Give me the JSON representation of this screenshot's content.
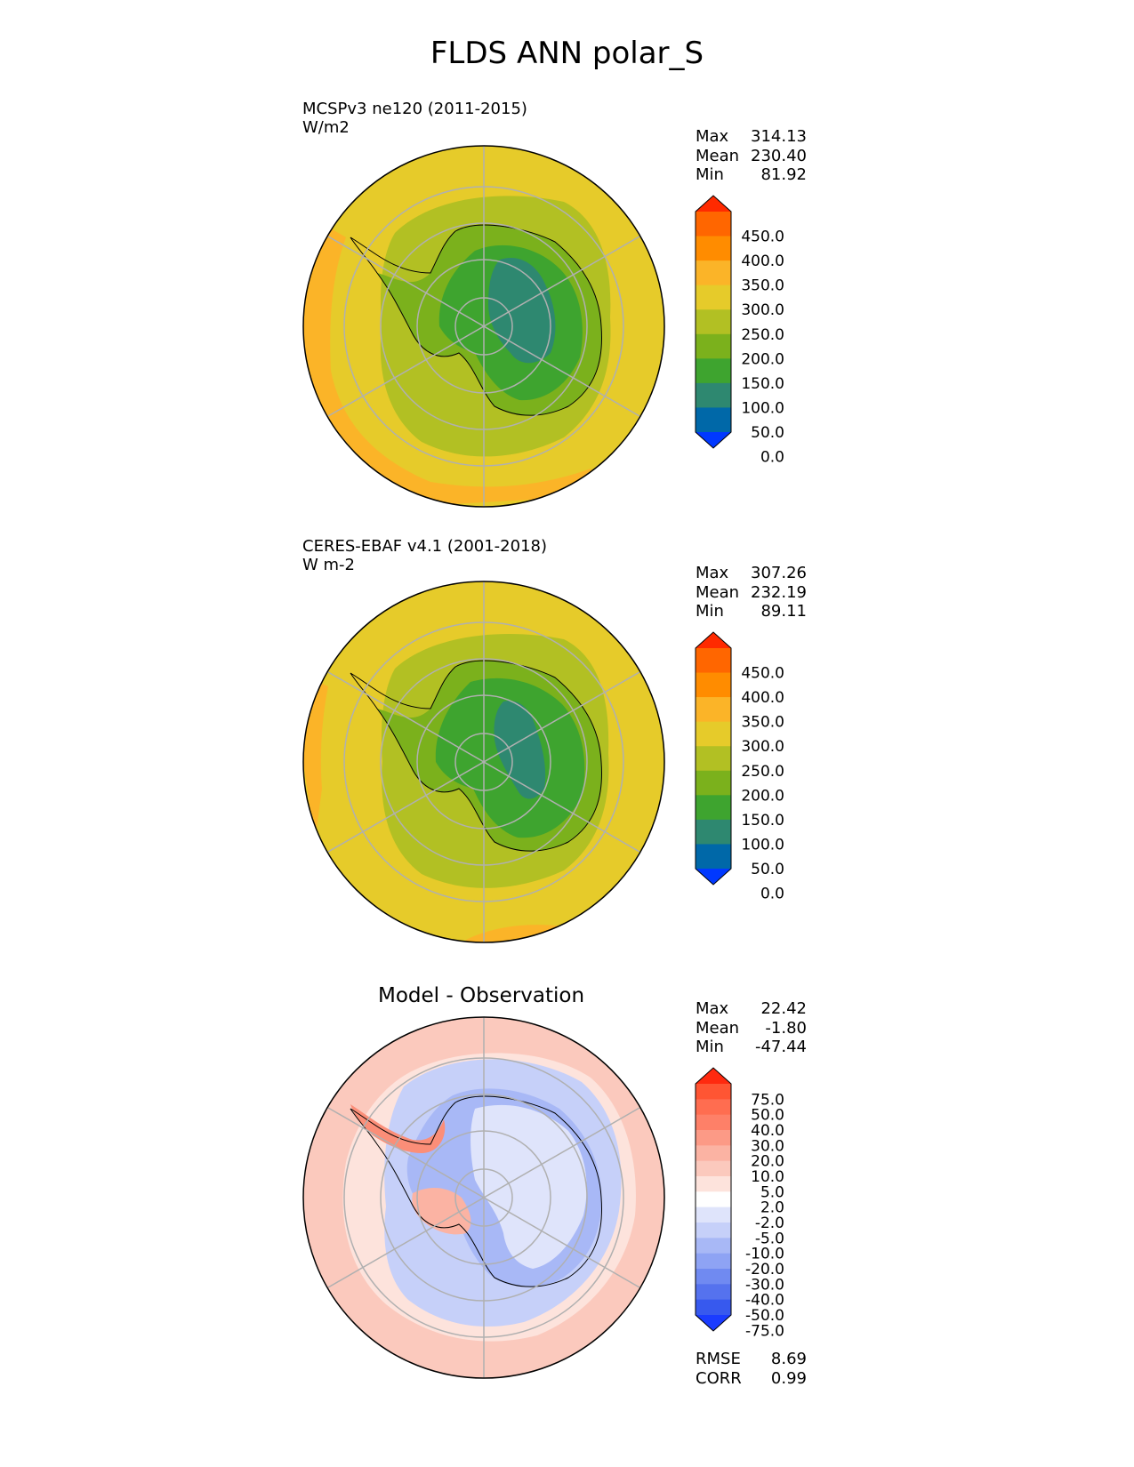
{
  "title": "FLDS ANN polar_S",
  "panels": [
    {
      "id": "test",
      "label_line1": "MCSPv3 ne120 (2011-2015)",
      "label_line2": "W/m2",
      "stats": [
        {
          "name": "Max",
          "value": "314.13"
        },
        {
          "name": "Mean",
          "value": "230.40"
        },
        {
          "name": "Min",
          "value": "81.92"
        }
      ],
      "colorbar": {
        "ticks": [
          "450.0",
          "400.0",
          "350.0",
          "300.0",
          "250.0",
          "200.0",
          "150.0",
          "100.0",
          "50.0",
          "0.0"
        ],
        "colors_top_to_bottom": [
          "#ff2a00",
          "#ff6600",
          "#ff8c00",
          "#fbb428",
          "#e6cb2a",
          "#b2c023",
          "#7bb11c",
          "#3ea42f",
          "#2e8870",
          "#0068a8",
          "#0038ff"
        ]
      }
    },
    {
      "id": "ref",
      "label_line1": "CERES-EBAF v4.1 (2001-2018)",
      "label_line2": "W m-2",
      "stats": [
        {
          "name": "Max",
          "value": "307.26"
        },
        {
          "name": "Mean",
          "value": "232.19"
        },
        {
          "name": "Min",
          "value": "89.11"
        }
      ],
      "colorbar": {
        "ticks": [
          "450.0",
          "400.0",
          "350.0",
          "300.0",
          "250.0",
          "200.0",
          "150.0",
          "100.0",
          "50.0",
          "0.0"
        ],
        "colors_top_to_bottom": [
          "#ff2a00",
          "#ff6600",
          "#ff8c00",
          "#fbb428",
          "#e6cb2a",
          "#b2c023",
          "#7bb11c",
          "#3ea42f",
          "#2e8870",
          "#0068a8",
          "#0038ff"
        ]
      }
    },
    {
      "id": "diff",
      "title": "Model - Observation",
      "stats": [
        {
          "name": "Max",
          "value": "22.42"
        },
        {
          "name": "Mean",
          "value": "-1.80"
        },
        {
          "name": "Min",
          "value": "-47.44"
        }
      ],
      "metrics": [
        {
          "name": "RMSE",
          "value": "8.69"
        },
        {
          "name": "CORR",
          "value": "0.99"
        }
      ],
      "colorbar": {
        "ticks": [
          "75.0",
          "50.0",
          "40.0",
          "30.0",
          "20.0",
          "10.0",
          "5.0",
          "2.0",
          "-2.0",
          "-5.0",
          "-10.0",
          "-20.0",
          "-30.0",
          "-40.0",
          "-50.0",
          "-75.0"
        ],
        "colors_top_to_bottom": [
          "#ff2a0f",
          "#ff5533",
          "#ff6d50",
          "#fe8068",
          "#fc9a86",
          "#fbb3a3",
          "#fbc9bd",
          "#fde3dc",
          "#ffffff",
          "#dfe4fb",
          "#c6d0f9",
          "#a8b8f6",
          "#8ea3f4",
          "#708af1",
          "#5572ee",
          "#3759ee",
          "#1a3cff"
        ]
      }
    }
  ]
}
